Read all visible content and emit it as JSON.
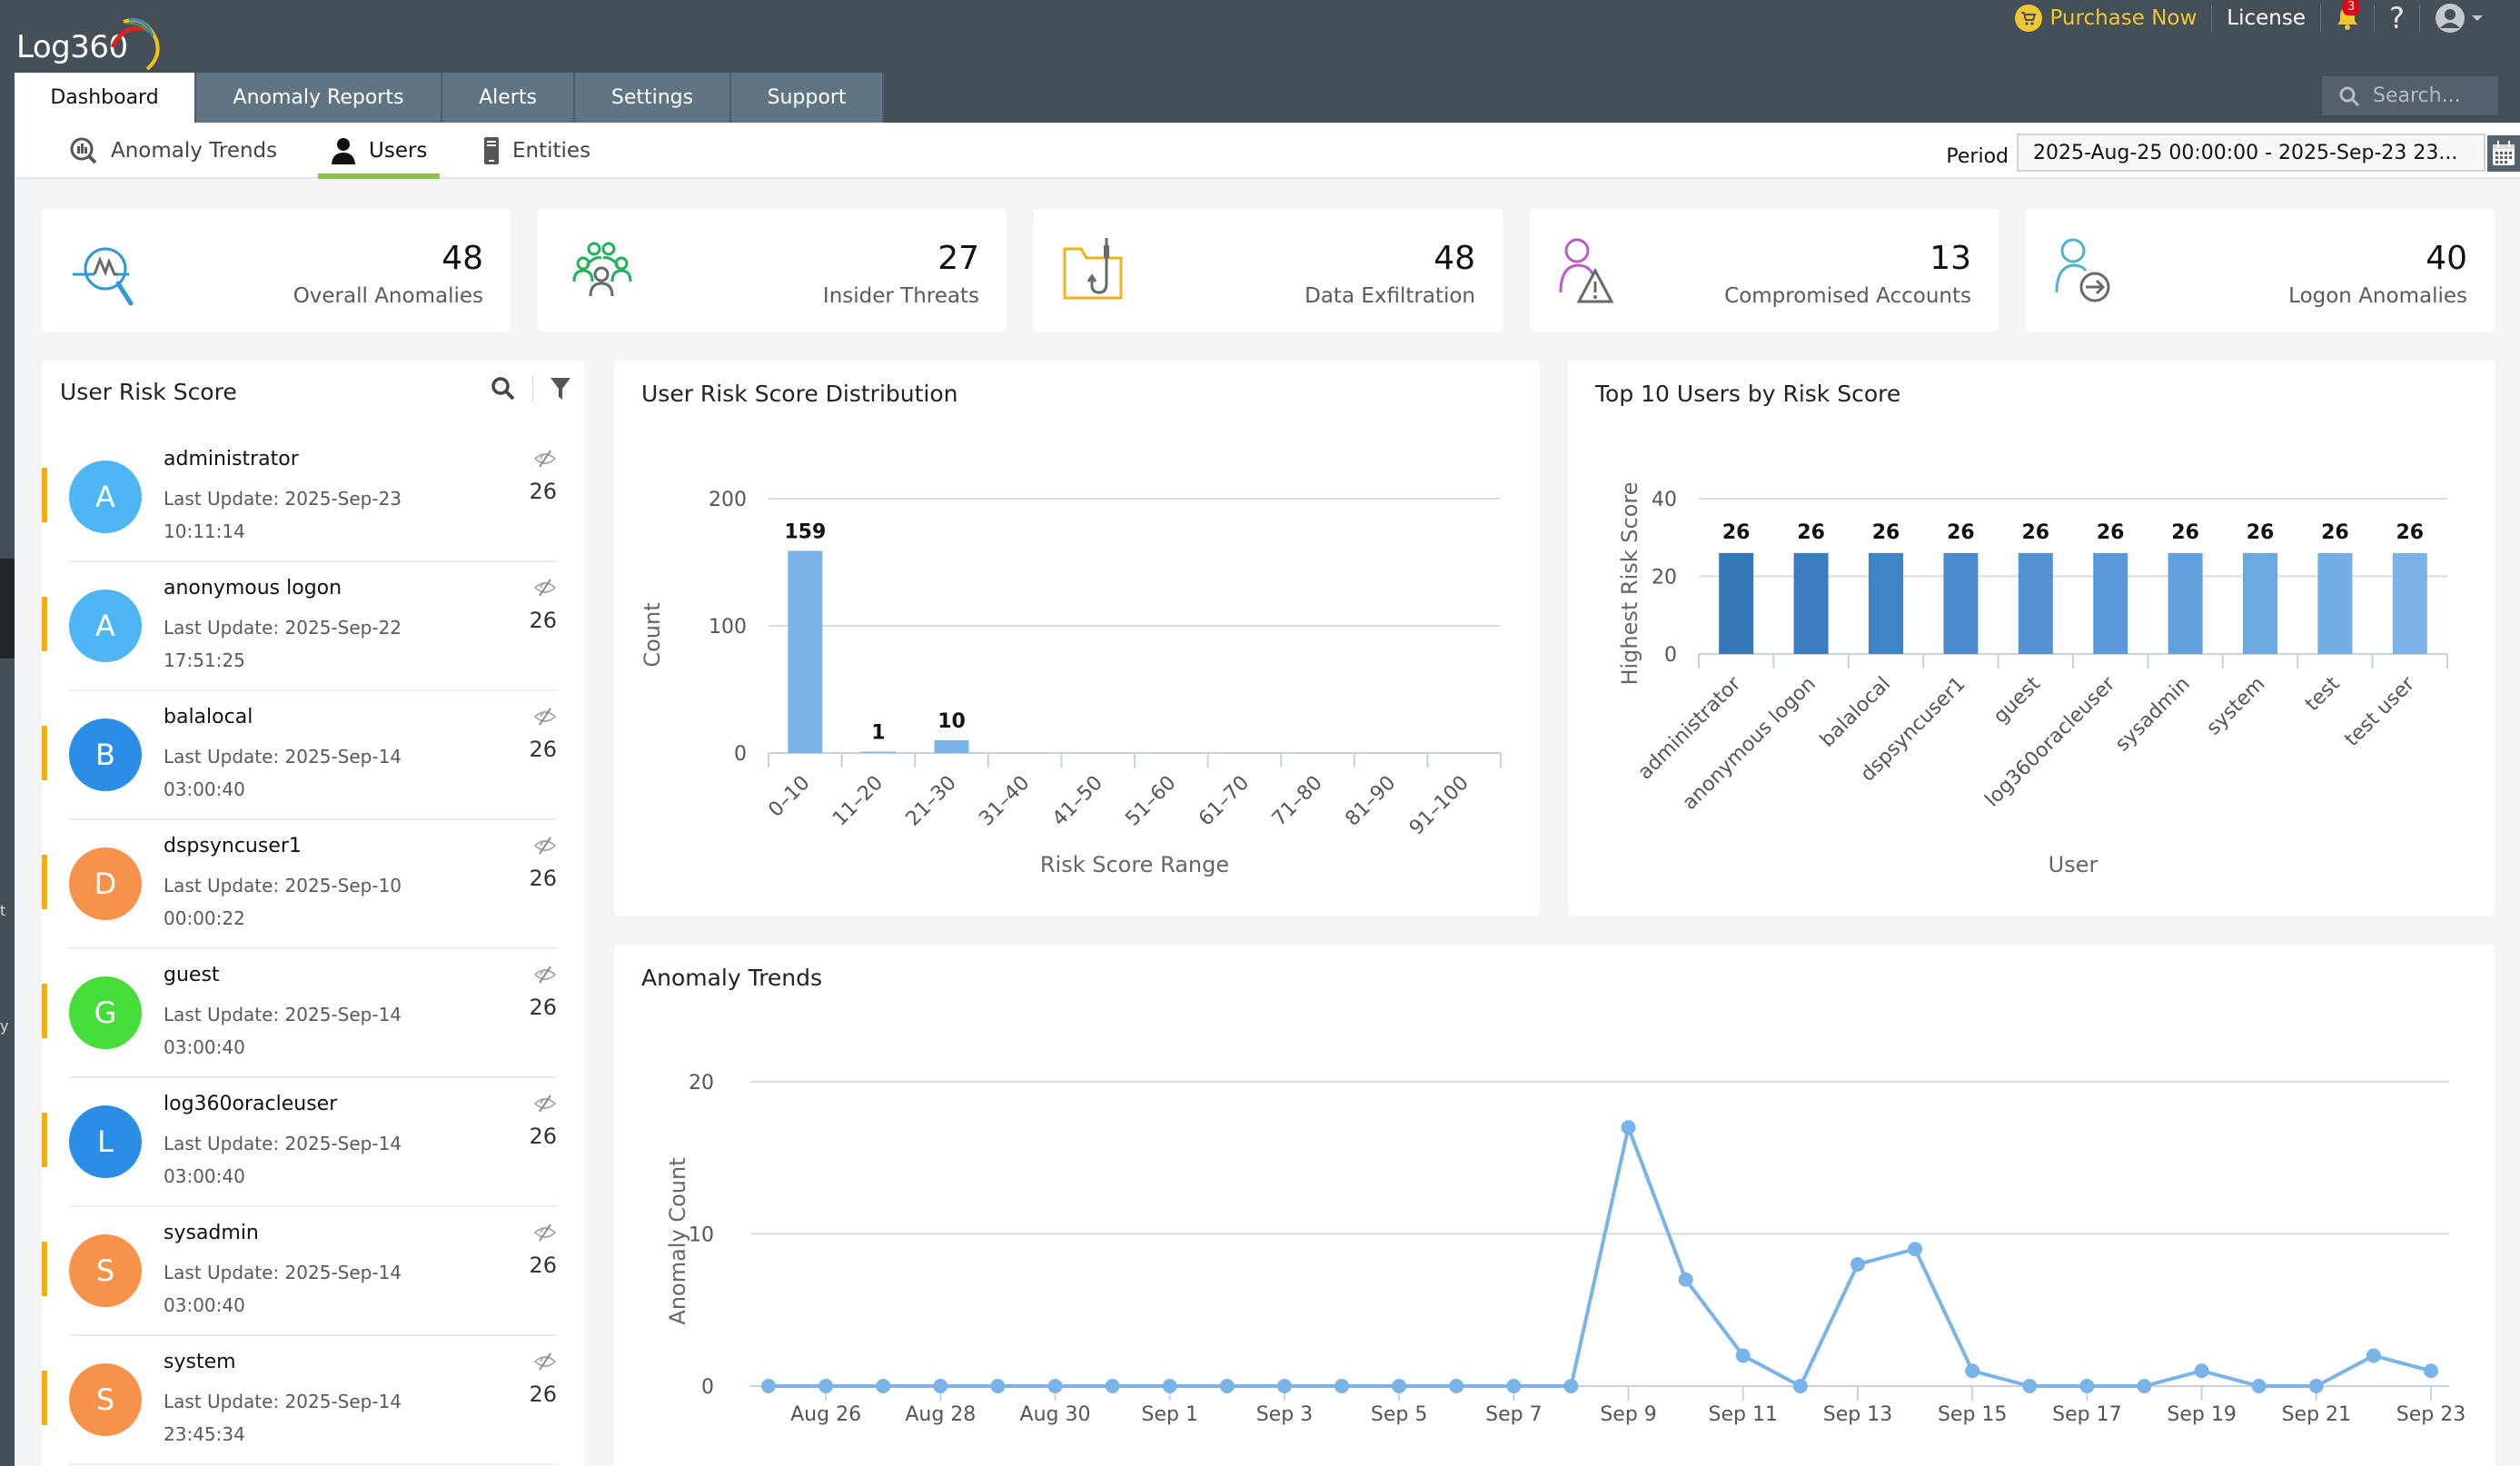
{
  "app": {
    "logo_text": "Log360",
    "purchase_label": "Purchase Now",
    "license_label": "License",
    "notification_count": "3",
    "help_label": "?",
    "search_placeholder": "Search..."
  },
  "tabs": [
    {
      "label": "Dashboard",
      "active": true
    },
    {
      "label": "Anomaly Reports",
      "active": false
    },
    {
      "label": "Alerts",
      "active": false
    },
    {
      "label": "Settings",
      "active": false
    },
    {
      "label": "Support",
      "active": false
    }
  ],
  "subtabs": [
    {
      "label": "Anomaly Trends",
      "icon": "chart-search-icon",
      "active": false
    },
    {
      "label": "Users",
      "icon": "user-icon",
      "active": true
    },
    {
      "label": "Entities",
      "icon": "server-icon",
      "active": false
    }
  ],
  "period": {
    "label": "Period",
    "value": "2025-Aug-25 00:00:00 - 2025-Sep-23 23..."
  },
  "left_strip": {
    "peek_1": "t",
    "peek_2": "y"
  },
  "cards": [
    {
      "value": "48",
      "label": "Overall Anomalies",
      "icon": "anomaly-search-icon",
      "color": "#2d9ad8"
    },
    {
      "value": "27",
      "label": "Insider Threats",
      "icon": "group-users-icon",
      "color": "#22b15a"
    },
    {
      "value": "48",
      "label": "Data Exfiltration",
      "icon": "folder-hook-icon",
      "color": "#f3b21b"
    },
    {
      "value": "13",
      "label": "Compromised Accounts",
      "icon": "user-warning-icon",
      "color": "#b85ec9"
    },
    {
      "value": "40",
      "label": "Logon Anomalies",
      "icon": "user-logon-icon",
      "color": "#4fb3cf"
    }
  ],
  "user_risk": {
    "title": "User Risk Score",
    "users": [
      {
        "initial": "A",
        "name": "administrator",
        "update_label": "Last Update: 2025-Sep-23",
        "update_time": "10:11:14",
        "score": "26",
        "color": "#4fb6f5"
      },
      {
        "initial": "A",
        "name": "anonymous logon",
        "update_label": "Last Update: 2025-Sep-22",
        "update_time": "17:51:25",
        "score": "26",
        "color": "#4fb6f5"
      },
      {
        "initial": "B",
        "name": "balalocal",
        "update_label": "Last Update: 2025-Sep-14",
        "update_time": "03:00:40",
        "score": "26",
        "color": "#2b8de6"
      },
      {
        "initial": "D",
        "name": "dspsyncuser1",
        "update_label": "Last Update: 2025-Sep-10",
        "update_time": "00:00:22",
        "score": "26",
        "color": "#f7924a"
      },
      {
        "initial": "G",
        "name": "guest",
        "update_label": "Last Update: 2025-Sep-14",
        "update_time": "03:00:40",
        "score": "26",
        "color": "#46dd3a"
      },
      {
        "initial": "L",
        "name": "log360oracleuser",
        "update_label": "Last Update: 2025-Sep-14",
        "update_time": "03:00:40",
        "score": "26",
        "color": "#2b8de6"
      },
      {
        "initial": "S",
        "name": "sysadmin",
        "update_label": "Last Update: 2025-Sep-14",
        "update_time": "03:00:40",
        "score": "26",
        "color": "#f7924a"
      },
      {
        "initial": "S",
        "name": "system",
        "update_label": "Last Update: 2025-Sep-14",
        "update_time": "23:45:34",
        "score": "26",
        "color": "#f7924a"
      }
    ]
  },
  "chart_data": [
    {
      "type": "bar",
      "title": "User Risk Score Distribution",
      "xlabel": "Risk Score Range",
      "ylabel": "Count",
      "categories": [
        "0–10",
        "11–20",
        "21–30",
        "31–40",
        "41–50",
        "51–60",
        "61–70",
        "71–80",
        "81–90",
        "91–100"
      ],
      "values": [
        159,
        1,
        10,
        0,
        0,
        0,
        0,
        0,
        0,
        0
      ],
      "data_labels": [
        "159",
        "1",
        "10",
        "",
        "",
        "",
        "",
        "",
        "",
        ""
      ],
      "ylim": [
        0,
        200
      ],
      "yticks": [
        0,
        100,
        200
      ],
      "grid": true,
      "color": "#7ab3e8"
    },
    {
      "type": "bar",
      "title": "Top 10 Users by Risk Score",
      "xlabel": "User",
      "ylabel": "Highest Risk Score",
      "categories": [
        "administrator",
        "anonymous logon",
        "balalocal",
        "dspsyncuser1",
        "guest",
        "log360oracleuser",
        "sysadmin",
        "system",
        "test",
        "test user"
      ],
      "values": [
        26,
        26,
        26,
        26,
        26,
        26,
        26,
        26,
        26,
        26
      ],
      "ylim": [
        0,
        40
      ],
      "yticks": [
        0,
        20,
        40
      ],
      "grid": true,
      "colors": [
        "#3478b8",
        "#3a7ec0",
        "#3f84c6",
        "#4a8ccd",
        "#5293d3",
        "#5b9ad8",
        "#63a1dc",
        "#6ca8e1",
        "#73aee4",
        "#7ab3e8"
      ]
    },
    {
      "type": "line",
      "title": "Anomaly Trends",
      "xlabel": "",
      "ylabel": "Anomaly Count",
      "x": [
        "Aug 25",
        "Aug 26",
        "Aug 27",
        "Aug 28",
        "Aug 29",
        "Aug 30",
        "Aug 31",
        "Sep 1",
        "Sep 2",
        "Sep 3",
        "Sep 4",
        "Sep 5",
        "Sep 6",
        "Sep 7",
        "Sep 8",
        "Sep 9",
        "Sep 10",
        "Sep 11",
        "Sep 12",
        "Sep 13",
        "Sep 14",
        "Sep 15",
        "Sep 16",
        "Sep 17",
        "Sep 18",
        "Sep 19",
        "Sep 20",
        "Sep 21",
        "Sep 22",
        "Sep 23"
      ],
      "values": [
        0,
        0,
        0,
        0,
        0,
        0,
        0,
        0,
        0,
        0,
        0,
        0,
        0,
        0,
        0,
        17,
        7,
        2,
        0,
        8,
        9,
        1,
        0,
        0,
        0,
        1,
        0,
        0,
        2,
        1
      ],
      "xtick_labels": [
        "Aug 26",
        "Aug 28",
        "Aug 30",
        "Sep 1",
        "Sep 3",
        "Sep 5",
        "Sep 7",
        "Sep 9",
        "Sep 11",
        "Sep 13",
        "Sep 15",
        "Sep 17",
        "Sep 19",
        "Sep 21",
        "Sep 23"
      ],
      "ylim": [
        0,
        20
      ],
      "yticks": [
        0,
        10,
        20
      ],
      "grid": true,
      "color": "#7ab3e8"
    }
  ]
}
